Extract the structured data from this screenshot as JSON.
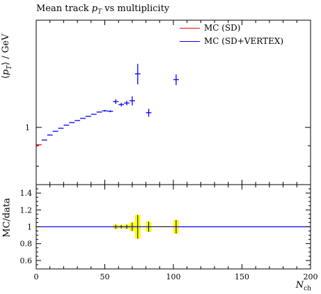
{
  "chart_data": [
    {
      "type": "scatter",
      "title": "Mean track p_T vs multiplicity",
      "title_parts": {
        "pre": "Mean track ",
        "var": "p",
        "sub": "T",
        "post": " vs multiplicity"
      },
      "ylabel": "⟨p_T⟩ / GeV",
      "ylabel_parts": {
        "pre": "⟨",
        "var": "p",
        "sub": "T",
        "post": "⟩ / GeV"
      },
      "ylim": [
        0.72,
        1.85
      ],
      "yscale": "log",
      "ytick_labels": [
        "1"
      ],
      "legend_placement": "top-right",
      "series": [
        {
          "name": "MC (SD)",
          "color": "#ff0000",
          "x": [
            2
          ],
          "y": [
            0.905
          ],
          "yerr": [
            0.0
          ],
          "xwidth": [
            4
          ]
        },
        {
          "name": "MC (SD+VERTEX)",
          "color": "#0000ff",
          "x": [
            6,
            10,
            14,
            18,
            22,
            26,
            30,
            34,
            38,
            42,
            46,
            50,
            54,
            58,
            62,
            66,
            70,
            74,
            82,
            102
          ],
          "y": [
            0.93,
            0.957,
            0.978,
            0.995,
            1.013,
            1.028,
            1.04,
            1.053,
            1.065,
            1.078,
            1.092,
            1.1,
            1.097,
            1.16,
            1.14,
            1.15,
            1.165,
            1.36,
            1.088,
            1.315
          ],
          "yerr": [
            0.001,
            0.001,
            0.001,
            0.001,
            0.002,
            0.002,
            0.002,
            0.003,
            0.003,
            0.004,
            0.004,
            0.005,
            0.006,
            0.015,
            0.012,
            0.015,
            0.03,
            0.08,
            0.025,
            0.04
          ],
          "xwidth": [
            4,
            4,
            4,
            4,
            4,
            4,
            4,
            4,
            4,
            4,
            4,
            4,
            4,
            4,
            4,
            4,
            4,
            4,
            4,
            4
          ]
        }
      ]
    },
    {
      "type": "scatter",
      "title": "",
      "xlabel": "N_ch",
      "xlabel_parts": {
        "var": "N",
        "sub": "ch"
      },
      "ylabel": "MC/data",
      "xlim": [
        0,
        200
      ],
      "ylim": [
        0.5,
        1.5
      ],
      "xticks": [
        0,
        50,
        100,
        150,
        200
      ],
      "yticks": [
        0.6,
        0.8,
        1,
        1.2,
        1.4
      ],
      "reference_line": 1,
      "band_color": "#ffff00",
      "band": {
        "x": [
          58,
          62,
          66,
          70,
          74,
          82,
          102
        ],
        "halfwidth": [
          0.025,
          0.02,
          0.025,
          0.05,
          0.14,
          0.06,
          0.08
        ]
      },
      "series": [
        {
          "name": "MC (SD)",
          "color": "#ff0000",
          "x": [
            2
          ],
          "y": [
            1.0
          ]
        },
        {
          "name": "MC (SD+VERTEX)",
          "color": "#0000ff",
          "x": [
            6,
            10,
            14,
            18,
            22,
            26,
            30,
            34,
            38,
            42,
            46,
            50,
            54,
            58,
            62,
            66,
            70,
            74,
            82,
            102
          ],
          "y": [
            1,
            1,
            1,
            1,
            1,
            1,
            1,
            1,
            1,
            1,
            1,
            1,
            1,
            1,
            1,
            1,
            1,
            1,
            1,
            1
          ]
        }
      ]
    }
  ],
  "colors": {
    "mc_sd": "#ff0000",
    "mc_sd_vertex": "#0000ff",
    "band": "#ffff00"
  }
}
